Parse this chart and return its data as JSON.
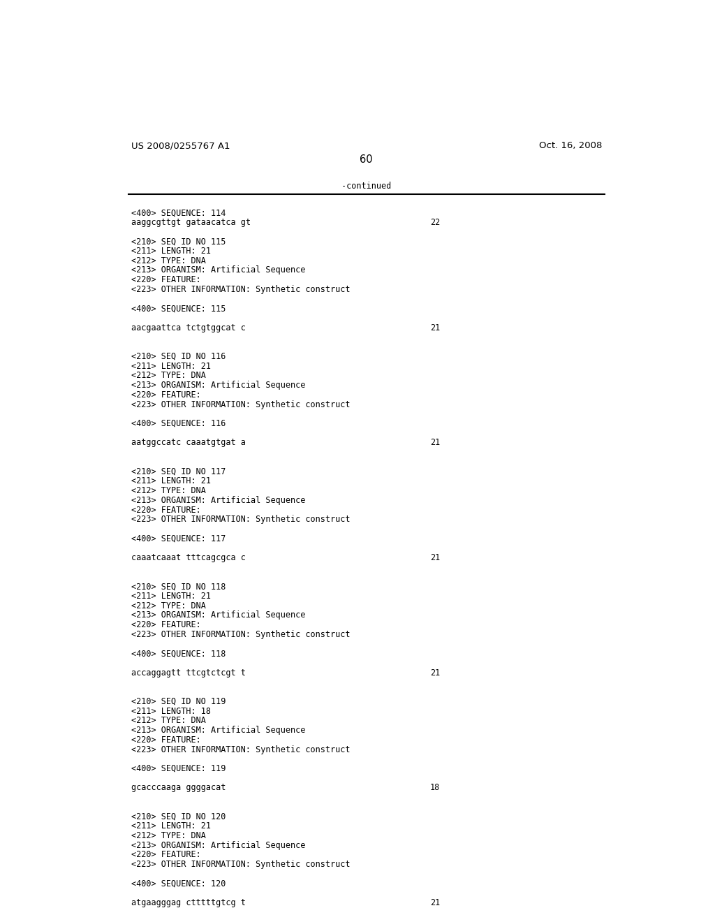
{
  "background_color": "#ffffff",
  "page_header_left": "US 2008/0255767 A1",
  "page_header_right": "Oct. 16, 2008",
  "page_number": "60",
  "continued_label": "-continued",
  "header_fontsize": 9.5,
  "body_fontsize": 8.5,
  "content": [
    {
      "type": "seq400",
      "text": "<400> SEQUENCE: 114"
    },
    {
      "type": "sequence",
      "seq": "aaggcgttgt gataacatca gt",
      "length": "22"
    },
    {
      "type": "blank"
    },
    {
      "type": "seq210",
      "text": "<210> SEQ ID NO 115"
    },
    {
      "type": "seq_info",
      "text": "<211> LENGTH: 21"
    },
    {
      "type": "seq_info",
      "text": "<212> TYPE: DNA"
    },
    {
      "type": "seq_info",
      "text": "<213> ORGANISM: Artificial Sequence"
    },
    {
      "type": "seq_info",
      "text": "<220> FEATURE:"
    },
    {
      "type": "seq_info",
      "text": "<223> OTHER INFORMATION: Synthetic construct"
    },
    {
      "type": "blank"
    },
    {
      "type": "seq400",
      "text": "<400> SEQUENCE: 115"
    },
    {
      "type": "blank"
    },
    {
      "type": "sequence",
      "seq": "aacgaattca tctgtggcat c",
      "length": "21"
    },
    {
      "type": "blank"
    },
    {
      "type": "blank"
    },
    {
      "type": "seq210",
      "text": "<210> SEQ ID NO 116"
    },
    {
      "type": "seq_info",
      "text": "<211> LENGTH: 21"
    },
    {
      "type": "seq_info",
      "text": "<212> TYPE: DNA"
    },
    {
      "type": "seq_info",
      "text": "<213> ORGANISM: Artificial Sequence"
    },
    {
      "type": "seq_info",
      "text": "<220> FEATURE:"
    },
    {
      "type": "seq_info",
      "text": "<223> OTHER INFORMATION: Synthetic construct"
    },
    {
      "type": "blank"
    },
    {
      "type": "seq400",
      "text": "<400> SEQUENCE: 116"
    },
    {
      "type": "blank"
    },
    {
      "type": "sequence",
      "seq": "aatggccatc caaatgtgat a",
      "length": "21"
    },
    {
      "type": "blank"
    },
    {
      "type": "blank"
    },
    {
      "type": "seq210",
      "text": "<210> SEQ ID NO 117"
    },
    {
      "type": "seq_info",
      "text": "<211> LENGTH: 21"
    },
    {
      "type": "seq_info",
      "text": "<212> TYPE: DNA"
    },
    {
      "type": "seq_info",
      "text": "<213> ORGANISM: Artificial Sequence"
    },
    {
      "type": "seq_info",
      "text": "<220> FEATURE:"
    },
    {
      "type": "seq_info",
      "text": "<223> OTHER INFORMATION: Synthetic construct"
    },
    {
      "type": "blank"
    },
    {
      "type": "seq400",
      "text": "<400> SEQUENCE: 117"
    },
    {
      "type": "blank"
    },
    {
      "type": "sequence",
      "seq": "caaatcaaat tttcagcgca c",
      "length": "21"
    },
    {
      "type": "blank"
    },
    {
      "type": "blank"
    },
    {
      "type": "seq210",
      "text": "<210> SEQ ID NO 118"
    },
    {
      "type": "seq_info",
      "text": "<211> LENGTH: 21"
    },
    {
      "type": "seq_info",
      "text": "<212> TYPE: DNA"
    },
    {
      "type": "seq_info",
      "text": "<213> ORGANISM: Artificial Sequence"
    },
    {
      "type": "seq_info",
      "text": "<220> FEATURE:"
    },
    {
      "type": "seq_info",
      "text": "<223> OTHER INFORMATION: Synthetic construct"
    },
    {
      "type": "blank"
    },
    {
      "type": "seq400",
      "text": "<400> SEQUENCE: 118"
    },
    {
      "type": "blank"
    },
    {
      "type": "sequence",
      "seq": "accaggagtt ttcgtctcgt t",
      "length": "21"
    },
    {
      "type": "blank"
    },
    {
      "type": "blank"
    },
    {
      "type": "seq210",
      "text": "<210> SEQ ID NO 119"
    },
    {
      "type": "seq_info",
      "text": "<211> LENGTH: 18"
    },
    {
      "type": "seq_info",
      "text": "<212> TYPE: DNA"
    },
    {
      "type": "seq_info",
      "text": "<213> ORGANISM: Artificial Sequence"
    },
    {
      "type": "seq_info",
      "text": "<220> FEATURE:"
    },
    {
      "type": "seq_info",
      "text": "<223> OTHER INFORMATION: Synthetic construct"
    },
    {
      "type": "blank"
    },
    {
      "type": "seq400",
      "text": "<400> SEQUENCE: 119"
    },
    {
      "type": "blank"
    },
    {
      "type": "sequence",
      "seq": "gcacccaaga ggggacat",
      "length": "18"
    },
    {
      "type": "blank"
    },
    {
      "type": "blank"
    },
    {
      "type": "seq210",
      "text": "<210> SEQ ID NO 120"
    },
    {
      "type": "seq_info",
      "text": "<211> LENGTH: 21"
    },
    {
      "type": "seq_info",
      "text": "<212> TYPE: DNA"
    },
    {
      "type": "seq_info",
      "text": "<213> ORGANISM: Artificial Sequence"
    },
    {
      "type": "seq_info",
      "text": "<220> FEATURE:"
    },
    {
      "type": "seq_info",
      "text": "<223> OTHER INFORMATION: Synthetic construct"
    },
    {
      "type": "blank"
    },
    {
      "type": "seq400",
      "text": "<400> SEQUENCE: 120"
    },
    {
      "type": "blank"
    },
    {
      "type": "sequence",
      "seq": "atgaagggag ctttttgtcg t",
      "length": "21"
    }
  ]
}
